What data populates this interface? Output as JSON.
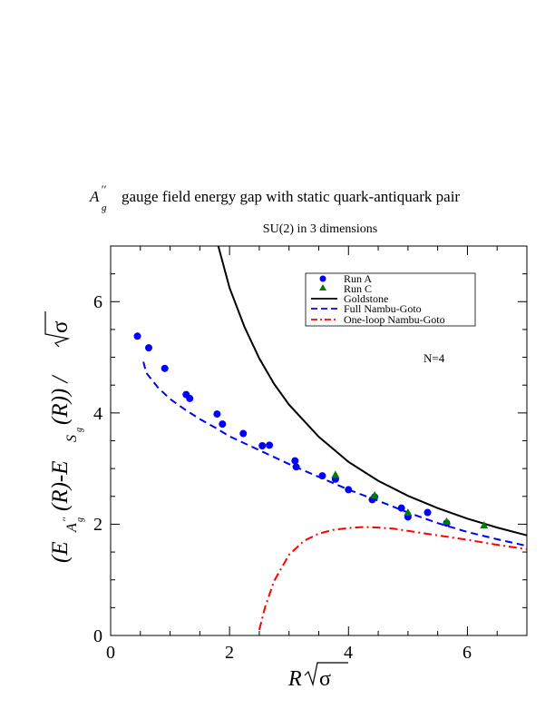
{
  "chart_data": {
    "type": "scatter",
    "title": "gauge field energy gap with static quark-antiquark pair",
    "title_symbol": "A",
    "title_symbol_sup": "′′",
    "title_symbol_sub": "g",
    "subtitle": "SU(2) in 3 dimensions",
    "annotation": "N=4",
    "xlabel": {
      "main": "R ",
      "sqrt_arg": "σ"
    },
    "ylabel": {
      "open": "(E",
      "sub1": "A",
      "sub1_sup": "′′",
      "sub1_sub": "g",
      "mid": "(R)-E",
      "sub2": "S",
      "sub2_sub": "g",
      "close": "(R)) / ",
      "sqrt_arg": "σ"
    },
    "xlim": [
      0,
      7
    ],
    "ylim": [
      0,
      7
    ],
    "xticks": [
      "0",
      "2",
      "4",
      "6"
    ],
    "yticks": [
      "0",
      "2",
      "4",
      "6"
    ],
    "grid": false,
    "legend_position": "top-right",
    "series": [
      {
        "name": "Run A",
        "kind": "scatter",
        "marker": "circle",
        "color": "#0000ff",
        "x": [
          0.45,
          0.64,
          0.91,
          1.27,
          1.33,
          1.79,
          1.88,
          2.23,
          2.55,
          2.67,
          3.1,
          3.12,
          3.56,
          3.78,
          4.0,
          4.4,
          4.44,
          4.89,
          5.0,
          5.33,
          5.65
        ],
        "y": [
          5.38,
          5.17,
          4.8,
          4.33,
          4.26,
          3.98,
          3.8,
          3.63,
          3.41,
          3.42,
          3.14,
          3.03,
          2.87,
          2.81,
          2.62,
          2.44,
          2.49,
          2.29,
          2.13,
          2.21,
          2.02
        ]
      },
      {
        "name": "Run C",
        "kind": "scatter",
        "marker": "triangle",
        "color": "#008000",
        "x": [
          3.78,
          4.44,
          5.0,
          5.65,
          6.28
        ],
        "y": [
          2.89,
          2.52,
          2.21,
          2.05,
          1.98
        ]
      },
      {
        "name": "Goldstone",
        "kind": "line",
        "dash": "solid",
        "color": "#000000",
        "x": [
          1.81,
          2.0,
          2.25,
          2.5,
          2.75,
          3.0,
          3.5,
          4.0,
          4.5,
          5.0,
          5.5,
          6.0,
          6.5,
          7.0
        ],
        "y": [
          7.0,
          6.25,
          5.55,
          4.98,
          4.52,
          4.15,
          3.57,
          3.12,
          2.78,
          2.51,
          2.29,
          2.1,
          1.94,
          1.8
        ]
      },
      {
        "name": "Full Nambu-Goto",
        "kind": "line",
        "dash": "dashed",
        "color": "#0000ff",
        "x": [
          0.55,
          0.6,
          0.8,
          1.0,
          1.25,
          1.5,
          1.75,
          2.0,
          2.5,
          3.0,
          3.5,
          4.0,
          4.5,
          5.0,
          5.5,
          6.0,
          6.5,
          7.0
        ],
        "y": [
          4.92,
          4.72,
          4.45,
          4.25,
          4.06,
          3.89,
          3.74,
          3.58,
          3.33,
          3.08,
          2.85,
          2.62,
          2.42,
          2.21,
          2.02,
          1.86,
          1.73,
          1.61
        ]
      },
      {
        "name": "One-loop Nambu-Goto",
        "kind": "line",
        "dash": "dash-dot",
        "color": "#ff0000",
        "x": [
          2.5,
          2.6,
          2.75,
          3.0,
          3.25,
          3.5,
          3.75,
          4.0,
          4.25,
          4.5,
          4.75,
          5.0,
          5.5,
          6.0,
          6.5,
          7.0
        ],
        "y": [
          0.1,
          0.52,
          0.98,
          1.45,
          1.7,
          1.83,
          1.9,
          1.93,
          1.95,
          1.94,
          1.92,
          1.88,
          1.8,
          1.72,
          1.63,
          1.55
        ]
      }
    ]
  }
}
